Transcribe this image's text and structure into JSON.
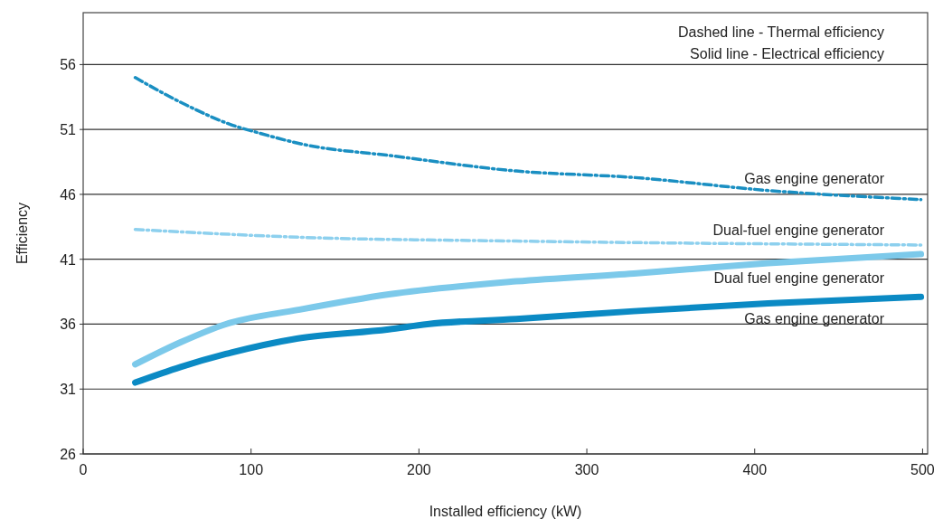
{
  "chart_data": {
    "type": "line",
    "xlabel": "Installed efficiency (kW)",
    "ylabel": "Efficiency",
    "annotations": [
      "Dashed line - Thermal efficiency",
      "Solid line - Electrical efficiency"
    ],
    "xlim": [
      0,
      503
    ],
    "xticks": [
      0,
      100,
      200,
      300,
      400,
      500
    ],
    "ylim": [
      26,
      60
    ],
    "yticks": [
      26,
      31,
      36,
      41,
      46,
      51,
      56
    ],
    "grid": "y",
    "series": [
      {
        "name": "Gas engine generator",
        "color": "#1a8fc2",
        "line_style": "dashed",
        "x": [
          31,
          58,
          92,
          100,
          133,
          182,
          258,
          328,
          408,
          499
        ],
        "values": [
          55.0,
          53.1,
          51.2,
          50.9,
          49.8,
          49.0,
          47.8,
          47.3,
          46.3,
          45.6
        ]
      },
      {
        "name": "Dual-fuel engine generator",
        "color": "#8dd0ee",
        "line_style": "dashed",
        "x": [
          31,
          128,
          258,
          499
        ],
        "values": [
          43.3,
          42.7,
          42.4,
          42.1
        ]
      },
      {
        "name": "Dual fuel engine generator",
        "color": "#7cc9ea",
        "line_style": "solid",
        "x": [
          31,
          58,
          85,
          128,
          182,
          258,
          328,
          408,
          499
        ],
        "values": [
          32.9,
          34.6,
          36.0,
          37.1,
          38.3,
          39.3,
          39.9,
          40.7,
          41.4
        ]
      },
      {
        "name": "Gas engine generator",
        "color": "#0b8ac4",
        "line_style": "solid",
        "x": [
          31,
          58,
          85,
          128,
          182,
          205,
          258,
          328,
          408,
          499
        ],
        "values": [
          31.5,
          32.7,
          33.7,
          34.9,
          35.6,
          36.0,
          36.4,
          37.0,
          37.6,
          38.1
        ]
      }
    ]
  }
}
